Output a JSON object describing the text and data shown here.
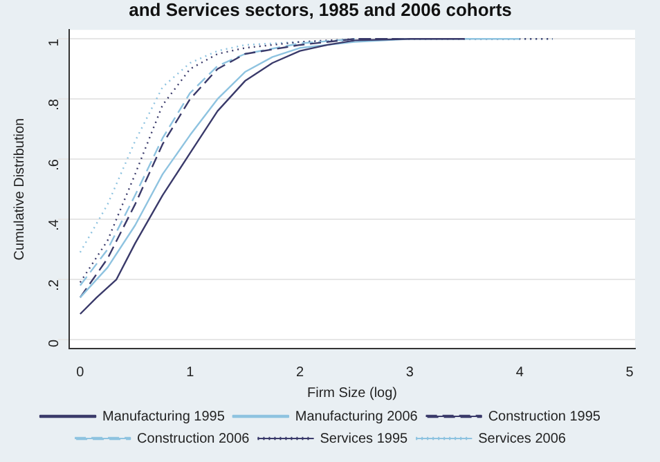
{
  "chart_data": {
    "type": "line",
    "title": "and Services sectors, 1985 and 2006 cohorts",
    "xlabel": "Firm Size (log)",
    "ylabel": "Cumulative Distribution",
    "xlim": [
      -0.1,
      5.05
    ],
    "xticks": [
      0,
      1,
      2,
      3,
      4,
      5
    ],
    "ylim": [
      -0.03,
      1.03
    ],
    "yticks": [
      0,
      {
        "value": 0.2,
        "label": ".2"
      },
      {
        "value": 0.4,
        "label": ".4"
      },
      {
        "value": 0.6,
        "label": ".6"
      },
      {
        "value": 0.8,
        "label": ".8"
      },
      1
    ],
    "grid": "y",
    "legend": "bottom",
    "marker": "none",
    "series": [
      {
        "name": "Manufacturing 1995",
        "color": "#3a3a6a",
        "line_style": "solid",
        "x": [
          0,
          0.15,
          0.33,
          0.5,
          0.75,
          1,
          1.25,
          1.5,
          1.75,
          2,
          2.25,
          2.5,
          3,
          3.5
        ],
        "values": [
          0.085,
          0.14,
          0.2,
          0.32,
          0.48,
          0.62,
          0.76,
          0.86,
          0.92,
          0.96,
          0.98,
          0.995,
          1,
          1
        ]
      },
      {
        "name": "Manufacturing 2006",
        "color": "#8ec3e0",
        "line_style": "solid",
        "x": [
          0,
          0.25,
          0.5,
          0.75,
          1,
          1.25,
          1.5,
          1.75,
          2,
          2.5,
          3,
          4
        ],
        "values": [
          0.14,
          0.24,
          0.38,
          0.55,
          0.68,
          0.8,
          0.89,
          0.94,
          0.97,
          0.99,
          1,
          1
        ]
      },
      {
        "name": "Construction 1995",
        "color": "#3a3a6a",
        "line_style": "dashed",
        "x": [
          0,
          0.25,
          0.5,
          0.75,
          1,
          1.25,
          1.5,
          2,
          2.5,
          3
        ],
        "values": [
          0.14,
          0.27,
          0.45,
          0.65,
          0.8,
          0.9,
          0.95,
          0.98,
          1,
          1
        ]
      },
      {
        "name": "Construction 2006",
        "color": "#8ec3e0",
        "line_style": "dashed",
        "x": [
          0,
          0.25,
          0.5,
          0.75,
          1,
          1.25,
          1.5,
          2,
          2.5
        ],
        "values": [
          0.18,
          0.3,
          0.48,
          0.67,
          0.82,
          0.91,
          0.95,
          0.985,
          1
        ]
      },
      {
        "name": "Services 1995",
        "color": "#3a3a6a",
        "line_style": "dotted",
        "x": [
          0,
          0.25,
          0.5,
          0.75,
          1,
          1.25,
          1.5,
          2,
          2.5,
          4.3
        ],
        "values": [
          0.19,
          0.33,
          0.55,
          0.78,
          0.9,
          0.95,
          0.97,
          0.99,
          1,
          1
        ]
      },
      {
        "name": "Services 2006",
        "color": "#8ec3e0",
        "line_style": "dotted",
        "x": [
          0,
          0.25,
          0.5,
          0.75,
          1,
          1.25,
          1.5,
          2,
          3,
          4.3
        ],
        "values": [
          0.29,
          0.45,
          0.66,
          0.84,
          0.92,
          0.96,
          0.98,
          0.99,
          1,
          1
        ]
      }
    ]
  }
}
